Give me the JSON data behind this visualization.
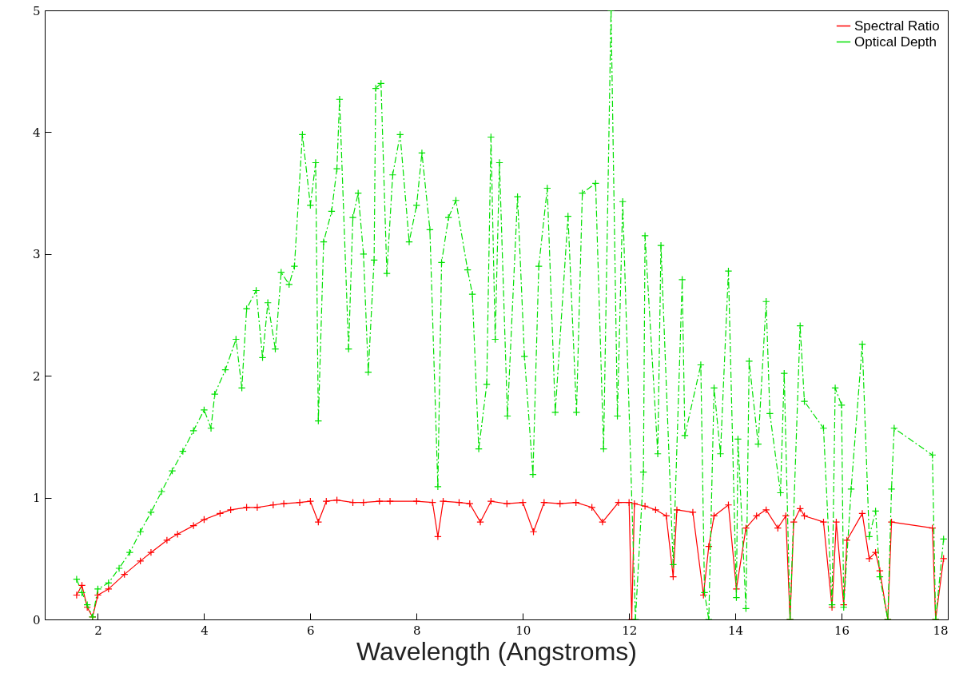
{
  "chart_data": {
    "type": "line",
    "xlabel": "Wavelength (Angstroms)",
    "xlim": [
      1,
      18
    ],
    "xticks": [
      2,
      4,
      6,
      8,
      10,
      12,
      14,
      16,
      18
    ],
    "ylim": [
      0,
      5
    ],
    "yticks": [
      0,
      1,
      2,
      3,
      4,
      5
    ],
    "grid": false,
    "legend": "top right",
    "series": [
      {
        "name": "Spectral Ratio",
        "color": "#ff0000",
        "marker": "cross",
        "line_style": "solid",
        "x": [
          1.6,
          1.7,
          1.8,
          1.9,
          2.0,
          2.2,
          2.5,
          2.8,
          3.0,
          3.3,
          3.5,
          3.8,
          4.0,
          4.3,
          4.5,
          4.8,
          5.0,
          5.3,
          5.5,
          5.8,
          6.0,
          6.15,
          6.3,
          6.5,
          6.8,
          7.0,
          7.3,
          7.5,
          8.0,
          8.3,
          8.4,
          8.5,
          8.8,
          9.0,
          9.2,
          9.4,
          9.7,
          10.0,
          10.2,
          10.4,
          10.7,
          11.0,
          11.3,
          11.5,
          11.8,
          12.0,
          12.05,
          12.1,
          12.3,
          12.5,
          12.7,
          12.83,
          12.9,
          13.2,
          13.4,
          13.5,
          13.6,
          13.87,
          14.02,
          14.2,
          14.4,
          14.58,
          14.8,
          14.95,
          15.03,
          15.1,
          15.22,
          15.3,
          15.66,
          15.82,
          15.9,
          16.04,
          16.1,
          16.39,
          16.52,
          16.64,
          16.72,
          16.87,
          16.94,
          17.71,
          17.77,
          17.92
        ],
        "values": [
          0.2,
          0.28,
          0.1,
          0.02,
          0.2,
          0.25,
          0.37,
          0.48,
          0.55,
          0.65,
          0.7,
          0.77,
          0.82,
          0.87,
          0.9,
          0.92,
          0.92,
          0.94,
          0.95,
          0.96,
          0.97,
          0.8,
          0.97,
          0.98,
          0.96,
          0.96,
          0.97,
          0.97,
          0.97,
          0.96,
          0.68,
          0.97,
          0.96,
          0.95,
          0.8,
          0.97,
          0.95,
          0.96,
          0.72,
          0.96,
          0.95,
          0.96,
          0.92,
          0.8,
          0.96,
          0.96,
          0,
          0.95,
          0.93,
          0.9,
          0.85,
          0.35,
          0.9,
          0.88,
          0.2,
          0.6,
          0.85,
          0.94,
          0.25,
          0.75,
          0.85,
          0.9,
          0.75,
          0.85,
          0,
          0.8,
          0.91,
          0.85,
          0.8,
          0.1,
          0.8,
          0.12,
          0.65,
          0.87,
          0.5,
          0.55,
          0.4,
          0,
          0.8,
          0.75,
          0,
          0.5
        ]
      },
      {
        "name": "Optical Depth",
        "color": "#00e000",
        "marker": "cross",
        "line_style": "dashed",
        "x": [
          1.6,
          1.7,
          1.8,
          1.9,
          2.0,
          2.2,
          2.4,
          2.6,
          2.8,
          3.0,
          3.2,
          3.4,
          3.6,
          3.8,
          4.0,
          4.13,
          4.2,
          4.4,
          4.6,
          4.71,
          4.8,
          4.98,
          5.1,
          5.2,
          5.34,
          5.45,
          5.6,
          5.7,
          5.85,
          6.0,
          6.1,
          6.15,
          6.25,
          6.4,
          6.5,
          6.55,
          6.72,
          6.8,
          6.9,
          7.0,
          7.09,
          7.2,
          7.23,
          7.33,
          7.44,
          7.55,
          7.69,
          7.86,
          8.0,
          8.1,
          8.25,
          8.4,
          8.47,
          8.6,
          8.74,
          8.96,
          9.05,
          9.17,
          9.32,
          9.4,
          9.48,
          9.56,
          9.71,
          9.9,
          10.03,
          10.19,
          10.3,
          10.46,
          10.61,
          10.85,
          11.01,
          11.12,
          11.37,
          11.52,
          11.66,
          11.78,
          11.88,
          12.12,
          12.27,
          12.3,
          12.54,
          12.6,
          12.83,
          13.0,
          13.05,
          13.35,
          13.42,
          13.5,
          13.6,
          13.72,
          13.87,
          14.02,
          14.05,
          14.2,
          14.26,
          14.43,
          14.58,
          14.65,
          14.85,
          14.92,
          15.03,
          15.22,
          15.3,
          15.66,
          15.82,
          15.88,
          16.0,
          16.04,
          16.18,
          16.39,
          16.52,
          16.64,
          16.72,
          16.87,
          16.94,
          16.99,
          17.71,
          17.77,
          17.92
        ],
        "values": [
          0.33,
          0.22,
          0.12,
          0.02,
          0.25,
          0.3,
          0.42,
          0.55,
          0.72,
          0.88,
          1.05,
          1.22,
          1.38,
          1.55,
          1.72,
          1.57,
          1.85,
          2.05,
          2.3,
          1.9,
          2.55,
          2.7,
          2.15,
          2.6,
          2.22,
          2.85,
          2.75,
          2.9,
          3.98,
          3.4,
          3.75,
          1.63,
          3.1,
          3.35,
          3.7,
          4.27,
          2.22,
          3.3,
          3.5,
          3.0,
          2.03,
          2.95,
          4.36,
          4.4,
          2.84,
          3.65,
          3.98,
          3.1,
          3.4,
          3.83,
          3.2,
          1.09,
          2.93,
          3.3,
          3.44,
          2.87,
          2.67,
          1.4,
          1.93,
          3.96,
          2.3,
          3.75,
          1.67,
          3.47,
          2.16,
          1.19,
          2.9,
          3.54,
          1.7,
          3.31,
          1.7,
          3.5,
          3.58,
          1.4,
          5,
          1.67,
          3.43,
          0,
          1.21,
          3.15,
          1.36,
          3.07,
          0.45,
          2.79,
          1.51,
          2.09,
          0.22,
          0,
          1.9,
          1.36,
          2.86,
          0.18,
          1.48,
          0.09,
          2.12,
          1.44,
          2.61,
          1.69,
          1.04,
          2.02,
          0,
          2.41,
          1.79,
          1.57,
          0.12,
          1.9,
          1.76,
          0.1,
          1.07,
          2.26,
          0.68,
          0.89,
          0.35,
          0,
          1.07,
          1.57,
          1.35,
          0,
          0.66
        ]
      }
    ]
  }
}
